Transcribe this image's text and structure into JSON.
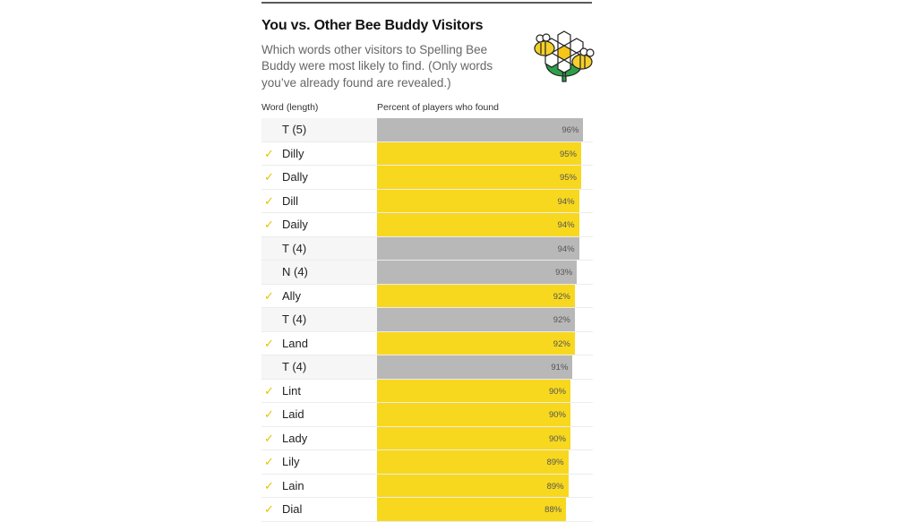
{
  "header": {
    "title": "You vs. Other Bee Buddy Visitors",
    "description": "Which words other visitors to Spelling Bee Buddy were most likely to find. (Only words you’ve already found are revealed.)",
    "logo_icon": "bee-flower-icon"
  },
  "columns": {
    "word": "Word (length)",
    "percent": "Percent of players who found"
  },
  "colors": {
    "found_bar": "#f7d81e",
    "hidden_bar": "#b8b8b8",
    "check": "#e6c300"
  },
  "check_glyph": "✓",
  "rows": [
    {
      "word": "T (5)",
      "found": false,
      "pct": 96,
      "label": "96%"
    },
    {
      "word": "Dilly",
      "found": true,
      "pct": 95,
      "label": "95%"
    },
    {
      "word": "Dally",
      "found": true,
      "pct": 95,
      "label": "95%"
    },
    {
      "word": "Dill",
      "found": true,
      "pct": 94,
      "label": "94%"
    },
    {
      "word": "Daily",
      "found": true,
      "pct": 94,
      "label": "94%"
    },
    {
      "word": "T (4)",
      "found": false,
      "pct": 94,
      "label": "94%"
    },
    {
      "word": "N (4)",
      "found": false,
      "pct": 93,
      "label": "93%"
    },
    {
      "word": "Ally",
      "found": true,
      "pct": 92,
      "label": "92%"
    },
    {
      "word": "T (4)",
      "found": false,
      "pct": 92,
      "label": "92%"
    },
    {
      "word": "Land",
      "found": true,
      "pct": 92,
      "label": "92%"
    },
    {
      "word": "T (4)",
      "found": false,
      "pct": 91,
      "label": "91%"
    },
    {
      "word": "Lint",
      "found": true,
      "pct": 90,
      "label": "90%"
    },
    {
      "word": "Laid",
      "found": true,
      "pct": 90,
      "label": "90%"
    },
    {
      "word": "Lady",
      "found": true,
      "pct": 90,
      "label": "90%"
    },
    {
      "word": "Lily",
      "found": true,
      "pct": 89,
      "label": "89%"
    },
    {
      "word": "Lain",
      "found": true,
      "pct": 89,
      "label": "89%"
    },
    {
      "word": "Dial",
      "found": true,
      "pct": 88,
      "label": "88%"
    }
  ],
  "chart_data": {
    "type": "bar",
    "orientation": "horizontal",
    "title": "You vs. Other Bee Buddy Visitors",
    "subtitle": "Which words other visitors to Spelling Bee Buddy were most likely to find. (Only words you’ve already found are revealed.)",
    "xlabel": "Percent of players who found",
    "ylabel": "Word (length)",
    "categories": [
      "T (5)",
      "Dilly",
      "Dally",
      "Dill",
      "Daily",
      "T (4)",
      "N (4)",
      "Ally",
      "T (4)",
      "Land",
      "T (4)",
      "Lint",
      "Laid",
      "Lady",
      "Lily",
      "Lain",
      "Dial"
    ],
    "values": [
      96,
      95,
      95,
      94,
      94,
      94,
      93,
      92,
      92,
      92,
      91,
      90,
      90,
      90,
      89,
      89,
      88
    ],
    "found": [
      false,
      true,
      true,
      true,
      true,
      false,
      false,
      true,
      false,
      true,
      false,
      true,
      true,
      true,
      true,
      true,
      true
    ],
    "xlim": [
      0,
      100
    ],
    "legend": "yellow = found by you (with check), grey = not yet found (hidden)"
  }
}
